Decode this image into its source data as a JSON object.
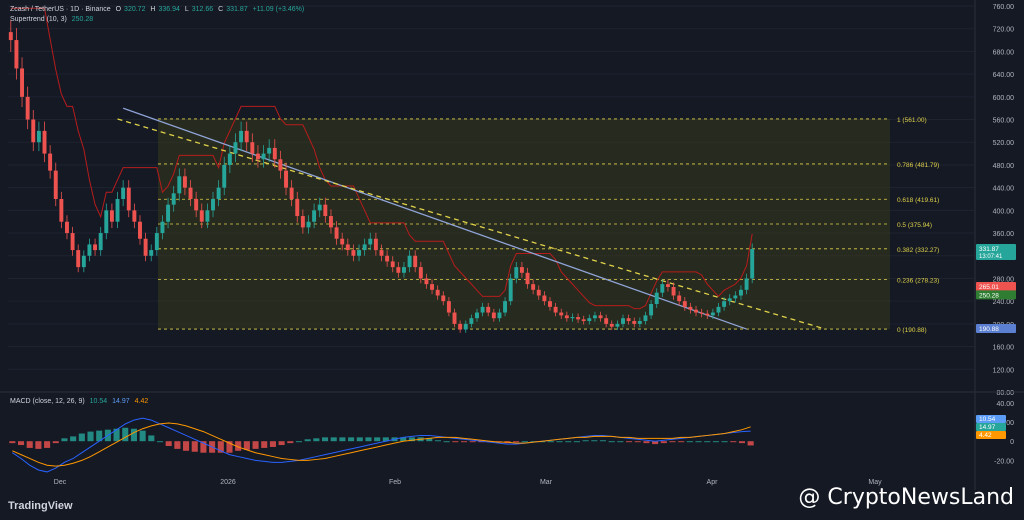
{
  "header": {
    "symbol": "Zcash / TetherUS · 1D · Binance",
    "ohlc": [
      {
        "k": "O",
        "v": "320.72"
      },
      {
        "k": "H",
        "v": "336.94"
      },
      {
        "k": "L",
        "v": "312.66"
      },
      {
        "k": "C",
        "v": "331.87"
      }
    ],
    "change": "+11.09 (+3.46%)",
    "supertrend_label": "Supertrend (10, 3)",
    "supertrend_value": "250.28",
    "macd_label": "MACD (close, 12, 26, 9)",
    "macd_values": [
      "10.54",
      "14.97",
      "4.42"
    ]
  },
  "watermark": {
    "brand": "TradingView",
    "source": "@ CryptoNewsLand"
  },
  "colors": {
    "bg": "#151924",
    "up": "#26a69a",
    "down": "#ef5350",
    "fib": "#e0d24a",
    "trend": "#8fa4d8",
    "supertrend_up": "#2e7d32",
    "supertrend_down": "#b71c1c"
  },
  "chart_data": [
    {
      "type": "candlestick",
      "title": "Zcash / TetherUS · 1D · Binance",
      "yaxis": {
        "range": [
          80,
          760
        ],
        "ticks": [
          760,
          720,
          680,
          640,
          600,
          560,
          520,
          480,
          440,
          400,
          360,
          320,
          280,
          240,
          200,
          160,
          120,
          80
        ],
        "tick_labels": [
          "760.00",
          "720.00",
          "680.00",
          "640.00",
          "600.00",
          "560.00",
          "520.00",
          "480.00",
          "440.00",
          "400.00",
          "360.00",
          "320.00",
          "280.00",
          "240.00",
          "200.00",
          "160.00",
          "120.00",
          "80.00"
        ]
      },
      "xaxis": {
        "labels": [
          "Dec",
          "2026",
          "Feb",
          "Mar",
          "Apr",
          "May"
        ]
      },
      "candles_close": [
        700,
        650,
        600,
        560,
        520,
        540,
        500,
        470,
        420,
        380,
        360,
        330,
        300,
        320,
        340,
        330,
        360,
        400,
        380,
        420,
        440,
        400,
        380,
        350,
        320,
        330,
        360,
        380,
        410,
        430,
        460,
        440,
        420,
        400,
        380,
        400,
        420,
        440,
        480,
        500,
        520,
        540,
        520,
        500,
        490,
        500,
        510,
        490,
        470,
        440,
        420,
        390,
        370,
        380,
        400,
        410,
        390,
        370,
        350,
        340,
        330,
        320,
        330,
        340,
        350,
        330,
        320,
        310,
        300,
        290,
        300,
        320,
        300,
        280,
        270,
        260,
        250,
        240,
        220,
        200,
        190,
        200,
        210,
        220,
        230,
        220,
        210,
        220,
        240,
        280,
        300,
        290,
        270,
        260,
        250,
        240,
        230,
        220,
        215,
        210,
        212,
        208,
        205,
        210,
        215,
        210,
        200,
        195,
        200,
        210,
        205,
        200,
        205,
        215,
        235,
        255,
        270,
        265,
        250,
        240,
        230,
        225,
        220,
        218,
        215,
        220,
        230,
        240,
        245,
        250,
        260,
        280,
        331.87
      ],
      "fib_levels": [
        {
          "ratio": "1",
          "price": 561.0,
          "label": "1 (561.00)"
        },
        {
          "ratio": "0.786",
          "price": 481.79,
          "label": "0.786 (481.79)"
        },
        {
          "ratio": "0.618",
          "price": 419.61,
          "label": "0.618 (419.61)"
        },
        {
          "ratio": "0.5",
          "price": 375.94,
          "label": "0.5 (375.94)"
        },
        {
          "ratio": "0.382",
          "price": 332.27,
          "label": "0.382 (332.27)"
        },
        {
          "ratio": "0.236",
          "price": 278.23,
          "label": "0.236 (278.23)"
        },
        {
          "ratio": "0",
          "price": 190.88,
          "label": "0 (190.88)"
        }
      ],
      "price_tags": [
        {
          "label": "331.87",
          "sub": "13:07:41",
          "price": 331.87,
          "color": "#26a69a"
        },
        {
          "label": "265.01",
          "price": 265.01,
          "color": "#ef5350"
        },
        {
          "label": "250.28",
          "price": 250.28,
          "color": "#2e7d32"
        },
        {
          "label": "190.88",
          "price": 190.88,
          "color": "#5b7fd1"
        }
      ],
      "trendlines": [
        {
          "name": "descending-resistance",
          "from": {
            "i": 20,
            "p": 580
          },
          "to": {
            "i": 131,
            "p": 190.88
          }
        },
        {
          "name": "dashed-resistance",
          "from": {
            "i": 19,
            "p": 561
          },
          "to": {
            "i": 145,
            "p": 190.88
          }
        }
      ]
    },
    {
      "type": "histogram",
      "title": "MACD (close, 12, 26, 9)",
      "yaxis": {
        "range": [
          -30,
          45
        ],
        "ticks": [
          40,
          20,
          0,
          -20
        ],
        "tick_labels": [
          "40.00",
          "20.00",
          "0",
          "-20.00"
        ]
      },
      "macd_line": [
        -12,
        -18,
        -25,
        -30,
        -32,
        -28,
        -22,
        -18,
        -12,
        -6,
        0,
        6,
        12,
        18,
        22,
        24,
        22,
        18,
        14,
        10,
        6,
        2,
        -2,
        -6,
        -10,
        -14,
        -16,
        -18,
        -20,
        -21,
        -22,
        -22,
        -21,
        -20,
        -18,
        -16,
        -14,
        -12,
        -10,
        -8,
        -6,
        -4,
        -2,
        0,
        2,
        4,
        5,
        6,
        6,
        5,
        4,
        3,
        2,
        1,
        0,
        -1,
        -2,
        -3,
        -3,
        -2,
        -1,
        0,
        1,
        2,
        3,
        4,
        5,
        6,
        6,
        5,
        4,
        3,
        2,
        1,
        0,
        1,
        2,
        3,
        4,
        5,
        6,
        7,
        8,
        9,
        10,
        10.54
      ],
      "signal_line": [
        -10,
        -14,
        -18,
        -22,
        -25,
        -26,
        -25,
        -23,
        -20,
        -16,
        -11,
        -6,
        -1,
        4,
        9,
        13,
        16,
        18,
        19,
        18,
        16,
        13,
        10,
        6,
        2,
        -2,
        -6,
        -9,
        -12,
        -14,
        -16,
        -18,
        -19,
        -20,
        -20,
        -19,
        -18,
        -16,
        -14,
        -12,
        -10,
        -8,
        -6,
        -4,
        -2,
        0,
        1,
        2,
        3,
        4,
        4,
        4,
        3,
        2,
        1,
        0,
        -1,
        -1,
        -2,
        -2,
        -1,
        0,
        1,
        2,
        3,
        4,
        4,
        5,
        5,
        5,
        4,
        4,
        3,
        3,
        3,
        3,
        3,
        4,
        4,
        5,
        6,
        7,
        8,
        10,
        12,
        14.97
      ],
      "legend": [
        "10.54",
        "14.97",
        "4.42"
      ]
    }
  ]
}
